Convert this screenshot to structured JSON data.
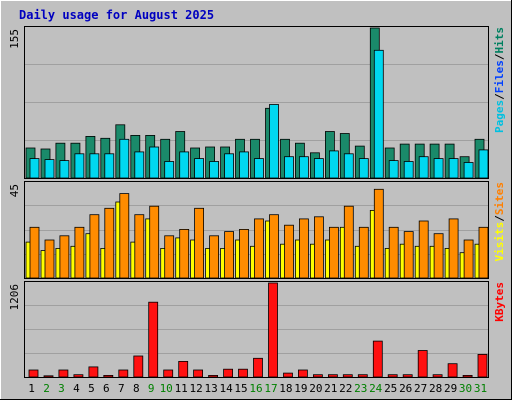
{
  "title": "Daily usage for August 2025",
  "colors": {
    "background": "#c0c0c0",
    "plot_bg": "#c0c0c0",
    "frame": "#000000",
    "grid": "#a0a0a0",
    "title": "#0000c0",
    "hits": "#008060",
    "files": "#0040ff",
    "pages": "#00c0e0",
    "visits": "#ffff00",
    "sites": "#ff8000",
    "kbytes": "#ff0000",
    "weekend_day": "#008000",
    "weekday_day": "#000000"
  },
  "chart_data": [
    {
      "type": "bar",
      "title": "Daily usage for August 2025",
      "categories": [
        "1",
        "2",
        "3",
        "4",
        "5",
        "6",
        "7",
        "8",
        "9",
        "10",
        "11",
        "12",
        "13",
        "14",
        "15",
        "16",
        "17",
        "18",
        "19",
        "20",
        "21",
        "22",
        "23",
        "24",
        "25",
        "26",
        "27",
        "28",
        "29",
        "30",
        "31"
      ],
      "weekend_days": [
        "2",
        "3",
        "9",
        "10",
        "16",
        "17",
        "23",
        "24",
        "30",
        "31"
      ],
      "ymax_label": "155",
      "ylim": [
        0,
        155
      ],
      "legend": [
        {
          "text": "Hits",
          "color": "#008060"
        },
        {
          "text": "Files",
          "color": "#0040ff"
        },
        {
          "text": "Pages",
          "color": "#00c0e0"
        }
      ],
      "legend_separator": "/",
      "series": [
        {
          "name": "Hits",
          "color": "#1a8a6a",
          "values": [
            31,
            30,
            36,
            36,
            43,
            41,
            55,
            44,
            44,
            40,
            48,
            31,
            32,
            32,
            40,
            40,
            72,
            40,
            36,
            26,
            48,
            46,
            33,
            155,
            31,
            35,
            35,
            35,
            35,
            22,
            40
          ]
        },
        {
          "name": "Pages",
          "color": "#00d8f0",
          "values": [
            20,
            19,
            18,
            25,
            25,
            25,
            40,
            27,
            32,
            17,
            27,
            20,
            17,
            25,
            27,
            20,
            76,
            22,
            22,
            20,
            28,
            25,
            20,
            132,
            18,
            17,
            22,
            20,
            20,
            16,
            29
          ]
        }
      ]
    },
    {
      "type": "bar",
      "categories": [
        "1",
        "2",
        "3",
        "4",
        "5",
        "6",
        "7",
        "8",
        "9",
        "10",
        "11",
        "12",
        "13",
        "14",
        "15",
        "16",
        "17",
        "18",
        "19",
        "20",
        "21",
        "22",
        "23",
        "24",
        "25",
        "26",
        "27",
        "28",
        "29",
        "30",
        "31"
      ],
      "ymax_label": "45",
      "ylim": [
        0,
        45
      ],
      "legend": [
        {
          "text": "Sites",
          "color": "#ff8000"
        },
        {
          "text": "Visits",
          "color": "#ffff00"
        }
      ],
      "legend_separator": "/",
      "series": [
        {
          "name": "Visits",
          "color": "#ffff00",
          "values": [
            17,
            13,
            14,
            15,
            21,
            14,
            36,
            17,
            28,
            14,
            19,
            18,
            14,
            14,
            18,
            15,
            27,
            16,
            18,
            16,
            18,
            24,
            15,
            32,
            14,
            16,
            15,
            15,
            14,
            12,
            16
          ]
        },
        {
          "name": "Sites",
          "color": "#ff8c00",
          "values": [
            24,
            18,
            20,
            24,
            30,
            33,
            40,
            30,
            34,
            20,
            23,
            33,
            20,
            22,
            23,
            28,
            30,
            25,
            28,
            29,
            24,
            34,
            24,
            42,
            24,
            22,
            27,
            21,
            28,
            18,
            24
          ]
        }
      ]
    },
    {
      "type": "bar",
      "categories": [
        "1",
        "2",
        "3",
        "4",
        "5",
        "6",
        "7",
        "8",
        "9",
        "10",
        "11",
        "12",
        "13",
        "14",
        "15",
        "16",
        "17",
        "18",
        "19",
        "20",
        "21",
        "22",
        "23",
        "24",
        "25",
        "26",
        "27",
        "28",
        "29",
        "30",
        "31"
      ],
      "ymax_label": "1206",
      "ylim": [
        0,
        1206
      ],
      "legend": [
        {
          "text": "KBytes",
          "color": "#ff0000"
        }
      ],
      "series": [
        {
          "name": "KBytes",
          "color": "#ff1010",
          "values": [
            90,
            15,
            90,
            30,
            130,
            20,
            90,
            270,
            960,
            90,
            200,
            90,
            20,
            100,
            100,
            240,
            1206,
            50,
            90,
            30,
            30,
            30,
            30,
            460,
            30,
            30,
            340,
            30,
            170,
            20,
            290
          ]
        }
      ]
    }
  ]
}
